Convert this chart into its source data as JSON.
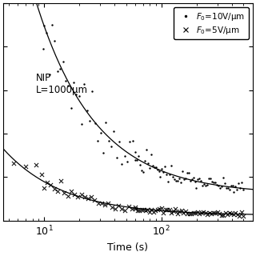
{
  "title": "",
  "xlabel": "Time (s)",
  "ylabel": "",
  "annotation": "NIP\nL=1000μm",
  "legend_entry1": "$F_0$=10V/μm",
  "legend_entry2": "$F_0$=5V/μm",
  "xlim": [
    4.5,
    600
  ],
  "ylim": [
    0.0,
    1.0
  ],
  "curve1_A": 5.5,
  "curve1_b": 0.85,
  "curve1_c": 0.12,
  "curve2_A": 1.1,
  "curve2_b": 0.85,
  "curve2_c": 0.024,
  "dot_color": "black",
  "line_color": "black",
  "bg_color": "white",
  "figsize": [
    3.2,
    3.2
  ],
  "dpi": 100
}
